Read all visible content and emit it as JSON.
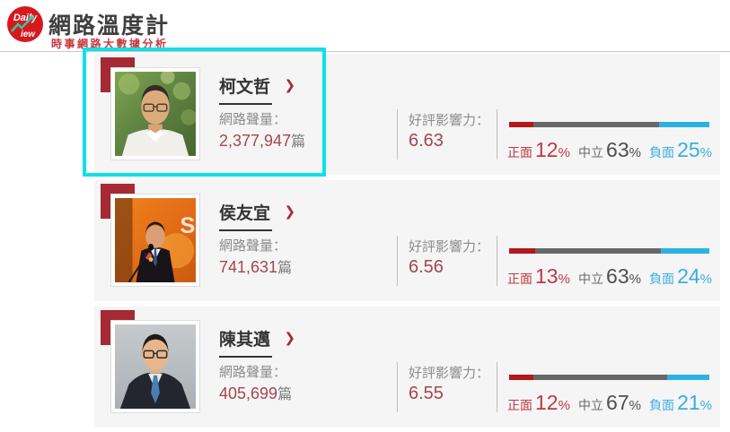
{
  "header": {
    "logo_top": "Daily",
    "logo_bottom": "view",
    "title": "網路溫度計",
    "subtitle": "時事網路大數據分析"
  },
  "labels": {
    "volume": "網路聲量：",
    "unit": "篇",
    "influence": "好評影響力：",
    "positive": "正面",
    "neutral": "中立",
    "negative": "負面",
    "percent": "%",
    "chevron": "❯"
  },
  "colors": {
    "badge_red": "#a52a33",
    "value_red": "#a4464b",
    "bar_positive": "#b2181e",
    "bar_neutral": "#686868",
    "bar_negative": "#2cb1e5",
    "positive_text": "#bf3a40",
    "neutral_text": "#4f4f4f",
    "negative_text": "#39ade0",
    "highlight_cyan": "#10e0e8",
    "card_bg": "#f5f5f6"
  },
  "ranking": [
    {
      "rank": "1",
      "name": "柯文哲",
      "volume": "2,377,947",
      "influence": "6.63",
      "positive": 12,
      "neutral": 63,
      "negative": 25,
      "highlighted": true
    },
    {
      "rank": "2",
      "name": "侯友宜",
      "volume": "741,631",
      "influence": "6.56",
      "positive": 13,
      "neutral": 63,
      "negative": 24,
      "highlighted": false
    },
    {
      "rank": "3",
      "name": "陳其邁",
      "volume": "405,699",
      "influence": "6.55",
      "positive": 12,
      "neutral": 67,
      "negative": 21,
      "highlighted": false
    }
  ]
}
